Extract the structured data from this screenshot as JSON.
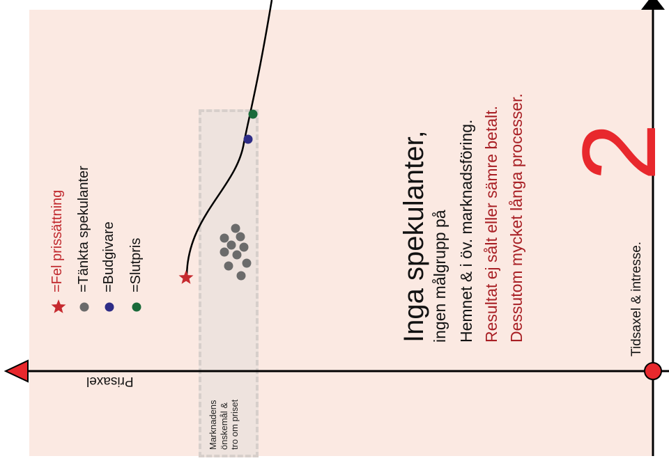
{
  "legend": [
    {
      "label": "=Fel prissättning",
      "marker": "star",
      "color": "#c62a2f"
    },
    {
      "label": "=Tänkta spekulanter",
      "marker": "dot",
      "color": "#6b6b6b"
    },
    {
      "label": "=Budgivare",
      "marker": "dot",
      "color": "#2e2c86"
    },
    {
      "label": "=Slutpris",
      "marker": "dot",
      "color": "#1a6a3a"
    }
  ],
  "text": {
    "heading": "Inga spekulanter,",
    "line1": "ingen målgrupp på",
    "line2": "Hemnet & i öv. marknadsföring.",
    "line3": "Resultat ej sålt eller sämre betalt.",
    "line4": "Dessutom mycket långa processer.",
    "number": "2",
    "time_axis": "Tidsaxel & intresse.",
    "price_axis": "Prisaxel",
    "band_label": "Marknadens\nönskemål &\ntro om priset"
  },
  "colors": {
    "panel": "#fbe9e2",
    "accent_red": "#e8282d",
    "dark_red": "#a81f24",
    "axis": "#000000"
  }
}
